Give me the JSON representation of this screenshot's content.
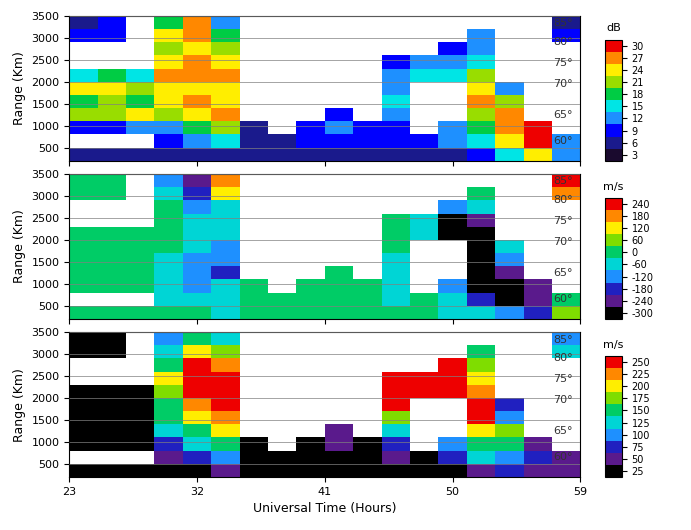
{
  "chart_data": [
    {
      "type": "heatmap",
      "ylabel": "Range (Km)",
      "xlim": [
        23,
        59
      ],
      "xticks": [
        23,
        32,
        41,
        50,
        59
      ],
      "ylim": [
        200,
        3500
      ],
      "yticks": [
        500,
        1000,
        1500,
        2000,
        2500,
        3000,
        3500
      ],
      "grid": true,
      "tick_labels": "y",
      "x_edges": [
        23,
        25,
        27,
        29,
        31,
        33,
        35,
        37,
        39,
        41,
        43,
        45,
        47,
        49,
        51,
        53,
        55,
        57,
        59
      ],
      "y_edges": [
        200,
        500,
        800,
        1100,
        1400,
        1700,
        2000,
        2300,
        2600,
        2900,
        3200,
        3500
      ],
      "lat_ticks": [
        {
          "value": 3330,
          "label": "85°"
        },
        {
          "value": 2900,
          "label": "80°"
        },
        {
          "value": 2430,
          "label": "75°"
        },
        {
          "value": 1950,
          "label": "70°"
        },
        {
          "value": 1250,
          "label": "65°"
        },
        {
          "value": 650,
          "label": "60°"
        }
      ],
      "colorbar": {
        "label": "dB",
        "range": [
          1.5,
          31.5
        ],
        "ticks": [
          3,
          6,
          9,
          12,
          15,
          18,
          21,
          24,
          27,
          30
        ]
      },
      "cells": [
        [
          6,
          6,
          6,
          6,
          6,
          6,
          6,
          6,
          6,
          6,
          6,
          6,
          6,
          6,
          9,
          15,
          24,
          12
        ],
        [
          null,
          null,
          null,
          9,
          12,
          15,
          6,
          6,
          9,
          9,
          9,
          9,
          9,
          12,
          15,
          24,
          30,
          12
        ],
        [
          9,
          9,
          12,
          12,
          18,
          21,
          6,
          null,
          9,
          12,
          9,
          9,
          null,
          12,
          18,
          27,
          30,
          null
        ],
        [
          21,
          21,
          24,
          21,
          24,
          27,
          null,
          null,
          null,
          9,
          null,
          12,
          null,
          null,
          21,
          27,
          null,
          null
        ],
        [
          18,
          21,
          18,
          24,
          27,
          24,
          null,
          null,
          null,
          null,
          null,
          15,
          null,
          null,
          27,
          21,
          null,
          null
        ],
        [
          24,
          24,
          21,
          24,
          24,
          24,
          null,
          null,
          null,
          null,
          null,
          12,
          null,
          null,
          24,
          12,
          null,
          null
        ],
        [
          15,
          18,
          15,
          27,
          27,
          27,
          null,
          null,
          null,
          null,
          null,
          12,
          15,
          15,
          21,
          null,
          null,
          null
        ],
        [
          null,
          null,
          null,
          24,
          27,
          24,
          null,
          null,
          null,
          null,
          null,
          9,
          12,
          12,
          15,
          null,
          null,
          null
        ],
        [
          null,
          null,
          null,
          21,
          24,
          21,
          null,
          null,
          null,
          null,
          null,
          null,
          null,
          9,
          12,
          null,
          null,
          null
        ],
        [
          9,
          9,
          null,
          24,
          27,
          18,
          null,
          null,
          null,
          null,
          null,
          null,
          null,
          null,
          12,
          null,
          null,
          9
        ],
        [
          6,
          9,
          null,
          18,
          27,
          12,
          null,
          null,
          null,
          null,
          null,
          null,
          null,
          null,
          null,
          null,
          null,
          6
        ]
      ]
    },
    {
      "type": "heatmap",
      "ylabel": "Range (Km)",
      "xlim": [
        23,
        59
      ],
      "xticks": [
        23,
        32,
        41,
        50,
        59
      ],
      "ylim": [
        200,
        3500
      ],
      "yticks": [
        500,
        1000,
        1500,
        2000,
        2500,
        3000,
        3500
      ],
      "grid": true,
      "tick_labels": "y",
      "x_edges": [
        23,
        25,
        27,
        29,
        31,
        33,
        35,
        37,
        39,
        41,
        43,
        45,
        47,
        49,
        51,
        53,
        55,
        57,
        59
      ],
      "y_edges": [
        200,
        500,
        800,
        1100,
        1400,
        1700,
        2000,
        2300,
        2600,
        2900,
        3200,
        3500
      ],
      "lat_ticks": [
        {
          "value": 3330,
          "label": "85°"
        },
        {
          "value": 2900,
          "label": "80°"
        },
        {
          "value": 2430,
          "label": "75°"
        },
        {
          "value": 1950,
          "label": "70°"
        },
        {
          "value": 1250,
          "label": "65°"
        },
        {
          "value": 650,
          "label": "60°"
        }
      ],
      "colorbar": {
        "label": "m/s",
        "range": [
          -330,
          270
        ],
        "ticks": [
          -300,
          -240,
          -180,
          -120,
          -60,
          0,
          60,
          120,
          180,
          240
        ]
      },
      "cells": [
        [
          0,
          0,
          0,
          0,
          0,
          -60,
          0,
          0,
          0,
          0,
          0,
          0,
          0,
          -60,
          -60,
          -120,
          -180,
          60
        ],
        [
          null,
          null,
          null,
          -60,
          -60,
          -60,
          0,
          0,
          0,
          0,
          0,
          -60,
          0,
          -60,
          -180,
          -300,
          -240,
          0
        ],
        [
          0,
          0,
          0,
          -60,
          -120,
          -60,
          0,
          null,
          0,
          0,
          0,
          -60,
          null,
          -120,
          -300,
          -300,
          -240,
          null
        ],
        [
          0,
          0,
          0,
          -60,
          -120,
          -180,
          null,
          null,
          null,
          0,
          null,
          -60,
          null,
          null,
          -300,
          -240,
          null,
          null
        ],
        [
          0,
          0,
          0,
          -60,
          -120,
          -120,
          null,
          null,
          null,
          null,
          null,
          -60,
          null,
          null,
          -300,
          -120,
          null,
          null
        ],
        [
          0,
          0,
          0,
          0,
          -60,
          -120,
          null,
          null,
          null,
          null,
          null,
          0,
          null,
          null,
          -300,
          -60,
          null,
          null
        ],
        [
          0,
          0,
          0,
          0,
          -60,
          -60,
          null,
          null,
          null,
          null,
          null,
          0,
          -60,
          -300,
          -300,
          null,
          null,
          null
        ],
        [
          null,
          null,
          null,
          0,
          -60,
          -60,
          null,
          null,
          null,
          null,
          null,
          0,
          -60,
          -300,
          -240,
          null,
          null,
          null
        ],
        [
          null,
          null,
          null,
          0,
          -120,
          -60,
          null,
          null,
          null,
          null,
          null,
          null,
          null,
          -120,
          -60,
          null,
          null,
          null
        ],
        [
          0,
          0,
          null,
          -60,
          -180,
          120,
          null,
          null,
          null,
          null,
          null,
          null,
          null,
          null,
          0,
          null,
          null,
          180
        ],
        [
          0,
          0,
          null,
          -120,
          -240,
          180,
          null,
          null,
          null,
          null,
          null,
          null,
          null,
          null,
          null,
          null,
          null,
          240
        ]
      ]
    },
    {
      "type": "heatmap",
      "ylabel": "Range (Km)",
      "xlabel": "Universal Time (Hours)",
      "xlim": [
        23,
        59
      ],
      "xticks": [
        23,
        32,
        41,
        50,
        59
      ],
      "ylim": [
        200,
        3500
      ],
      "yticks": [
        500,
        1000,
        1500,
        2000,
        2500,
        3000,
        3500
      ],
      "grid": true,
      "x_edges": [
        23,
        25,
        27,
        29,
        31,
        33,
        35,
        37,
        39,
        41,
        43,
        45,
        47,
        49,
        51,
        53,
        55,
        57,
        59
      ],
      "y_edges": [
        200,
        500,
        800,
        1100,
        1400,
        1700,
        2000,
        2300,
        2600,
        2900,
        3200,
        3500
      ],
      "lat_ticks": [
        {
          "value": 3330,
          "label": "85°"
        },
        {
          "value": 2900,
          "label": "80°"
        },
        {
          "value": 2430,
          "label": "75°"
        },
        {
          "value": 1950,
          "label": "70°"
        },
        {
          "value": 1250,
          "label": "65°"
        },
        {
          "value": 650,
          "label": "60°"
        }
      ],
      "colorbar": {
        "label": "m/s",
        "range": [
          12.5,
          262.5
        ],
        "ticks": [
          25,
          50,
          75,
          100,
          125,
          150,
          175,
          200,
          225,
          250
        ]
      },
      "cells": [
        [
          25,
          25,
          25,
          25,
          25,
          50,
          25,
          25,
          25,
          25,
          25,
          25,
          25,
          25,
          50,
          75,
          50,
          50
        ],
        [
          null,
          null,
          null,
          50,
          75,
          100,
          25,
          25,
          25,
          25,
          25,
          50,
          25,
          75,
          125,
          100,
          75,
          50
        ],
        [
          25,
          25,
          25,
          75,
          125,
          150,
          25,
          null,
          25,
          50,
          25,
          75,
          null,
          100,
          150,
          150,
          50,
          null
        ],
        [
          25,
          25,
          25,
          125,
          150,
          200,
          null,
          null,
          null,
          50,
          null,
          125,
          null,
          null,
          200,
          175,
          null,
          null
        ],
        [
          25,
          25,
          25,
          150,
          200,
          225,
          null,
          null,
          null,
          null,
          null,
          175,
          null,
          null,
          250,
          100,
          null,
          null
        ],
        [
          25,
          25,
          25,
          150,
          225,
          250,
          null,
          null,
          null,
          null,
          null,
          250,
          null,
          null,
          250,
          75,
          null,
          null
        ],
        [
          25,
          25,
          25,
          175,
          250,
          250,
          null,
          null,
          null,
          null,
          null,
          250,
          250,
          250,
          225,
          null,
          null,
          null
        ],
        [
          null,
          null,
          null,
          200,
          250,
          250,
          null,
          null,
          null,
          null,
          null,
          250,
          250,
          250,
          200,
          null,
          null,
          null
        ],
        [
          null,
          null,
          null,
          150,
          250,
          225,
          null,
          null,
          null,
          null,
          null,
          null,
          null,
          250,
          175,
          null,
          null,
          null
        ],
        [
          25,
          25,
          null,
          125,
          200,
          175,
          null,
          null,
          null,
          null,
          null,
          null,
          null,
          null,
          150,
          null,
          null,
          125
        ],
        [
          25,
          25,
          null,
          100,
          150,
          125,
          null,
          null,
          null,
          null,
          null,
          null,
          null,
          null,
          null,
          null,
          null,
          100
        ]
      ]
    }
  ]
}
